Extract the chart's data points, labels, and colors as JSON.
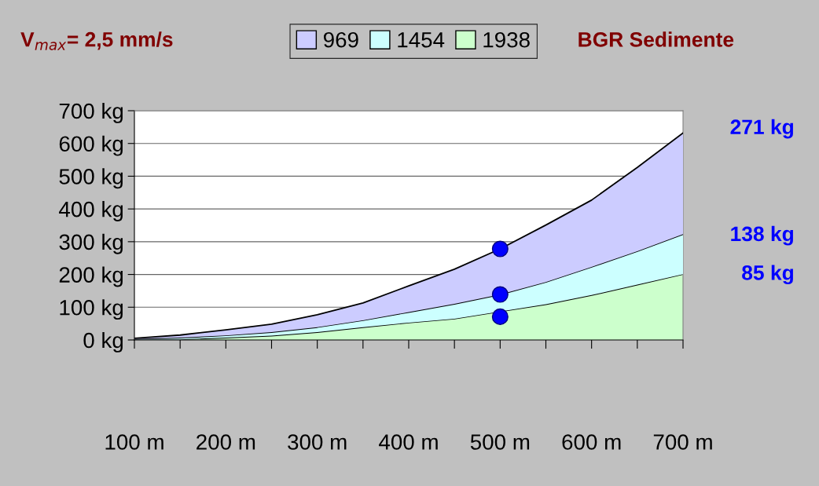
{
  "chart_data": {
    "type": "area",
    "title": "V$_{max}$= 2,5 mm/s",
    "subtitle": "BGR Sedimente",
    "stacked": true,
    "categories": [
      "100 m",
      null,
      "200 m",
      null,
      "300 m",
      null,
      "400 m",
      null,
      "500 m",
      null,
      "600 m",
      null,
      "700 m"
    ],
    "ylim": [
      0,
      700
    ],
    "yticks": [
      {
        "value": 0,
        "label": "0 kg"
      },
      {
        "value": 100,
        "label": "100 kg"
      },
      {
        "value": 200,
        "label": "200 kg"
      },
      {
        "value": 300,
        "label": "300 kg"
      },
      {
        "value": 400,
        "label": "400 kg"
      },
      {
        "value": 500,
        "label": "500 kg"
      },
      {
        "value": 600,
        "label": "600 kg"
      },
      {
        "value": 700,
        "label": "700 kg"
      }
    ],
    "grid": "y",
    "legend": "top",
    "series": [
      {
        "name": "1938",
        "color": "#ccffcc",
        "values": [
          1,
          2,
          7,
          13,
          24,
          39,
          53,
          65,
          87,
          109,
          137,
          169,
          201
        ]
      },
      {
        "name": "1454",
        "color": "#ccffff",
        "values": [
          2,
          5,
          7,
          11,
          15,
          21,
          32,
          45,
          52,
          68,
          86,
          102,
          122
        ]
      },
      {
        "name": "969",
        "color": "#ccccff",
        "values": [
          2,
          8,
          17,
          24,
          38,
          53,
          80,
          106,
          139,
          174,
          204,
          256,
          309
        ]
      },
      {
        "type": "scatter",
        "color": "#0000ff",
        "marker": "circle",
        "values": [
          null,
          null,
          null,
          null,
          null,
          null,
          null,
          null,
          278,
          null,
          null,
          null,
          null
        ]
      },
      {
        "type": "scatter",
        "color": "#0000ff",
        "marker": "circle",
        "values": [
          null,
          null,
          null,
          null,
          null,
          null,
          null,
          null,
          139,
          null,
          null,
          null,
          null
        ]
      },
      {
        "type": "scatter",
        "color": "#0000ff",
        "marker": "circle",
        "values": [
          null,
          null,
          null,
          null,
          null,
          null,
          null,
          null,
          71,
          null,
          null,
          null,
          null
        ]
      }
    ],
    "annotations": [
      "271 kg",
      "138 kg",
      "85 kg"
    ]
  }
}
